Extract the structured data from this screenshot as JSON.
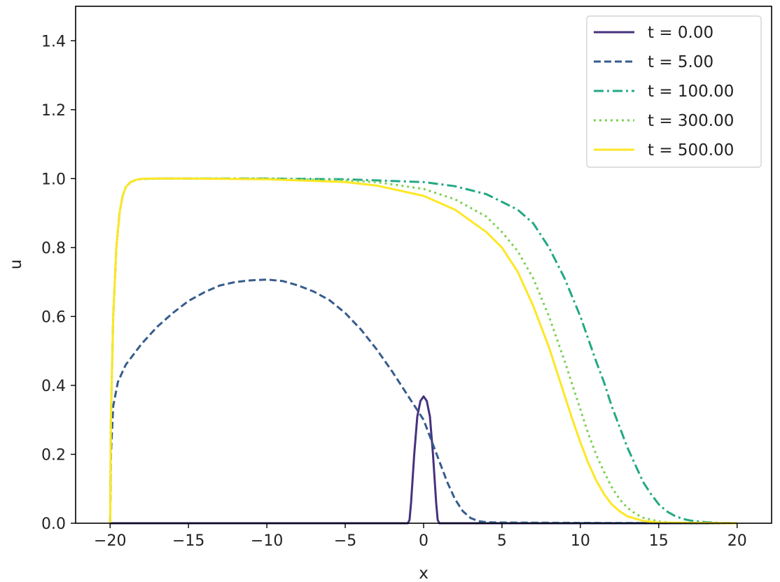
{
  "chart_data": {
    "type": "line",
    "title": "",
    "xlabel": "x",
    "ylabel": "u",
    "xlim": [
      -22.2,
      22.2
    ],
    "ylim": [
      0,
      1.5
    ],
    "xticks": [
      -20,
      -15,
      -10,
      -5,
      0,
      5,
      10,
      15,
      20
    ],
    "xtick_labels": [
      "−20",
      "−15",
      "−10",
      "−5",
      "0",
      "5",
      "10",
      "15",
      "20"
    ],
    "yticks": [
      0,
      0.2,
      0.4,
      0.6,
      0.8,
      1.0,
      1.2,
      1.4
    ],
    "ytick_labels": [
      "0.0",
      "0.2",
      "0.4",
      "0.6",
      "0.8",
      "1.0",
      "1.2",
      "1.4"
    ],
    "grid": false,
    "legend_position": "top-right",
    "series": [
      {
        "name": "t = 0.00",
        "color": "#46327e",
        "dash": "solid",
        "x": [
          -20,
          -1,
          -0.9,
          -0.8,
          -0.6,
          -0.4,
          -0.2,
          0,
          0.2,
          0.4,
          0.6,
          0.8,
          0.9,
          1,
          20
        ],
        "y": [
          0,
          0,
          0.01,
          0.06,
          0.2,
          0.31,
          0.355,
          0.368,
          0.355,
          0.31,
          0.2,
          0.06,
          0.01,
          0,
          0
        ]
      },
      {
        "name": "t = 5.00",
        "color": "#365c8d",
        "dash": "dashed",
        "x": [
          -20,
          -19.95,
          -19.8,
          -19.5,
          -19,
          -18,
          -17,
          -16,
          -15,
          -14,
          -13,
          -12,
          -11,
          -10,
          -9,
          -8,
          -7,
          -6,
          -5,
          -4,
          -3,
          -2,
          -1,
          0,
          0.5,
          1,
          1.5,
          2,
          2.5,
          3,
          3.5,
          4,
          5,
          10,
          20
        ],
        "y": [
          0,
          0.2,
          0.34,
          0.41,
          0.46,
          0.52,
          0.57,
          0.61,
          0.645,
          0.67,
          0.69,
          0.7,
          0.705,
          0.707,
          0.703,
          0.69,
          0.672,
          0.647,
          0.61,
          0.562,
          0.505,
          0.44,
          0.37,
          0.3,
          0.24,
          0.18,
          0.12,
          0.07,
          0.035,
          0.015,
          0.006,
          0.003,
          0.002,
          0.001,
          0
        ]
      },
      {
        "name": "t = 100.00",
        "color": "#22a884",
        "dash": "dashdot",
        "x": [
          -20,
          -19.95,
          -19.8,
          -19.6,
          -19.4,
          -19.2,
          -19,
          -18.7,
          -18.3,
          -18,
          -17,
          -15,
          -10,
          -5,
          0,
          2,
          4,
          6,
          7,
          8,
          9,
          10,
          11,
          11.5,
          12,
          12.5,
          13,
          13.5,
          14,
          14.5,
          15,
          15.5,
          16,
          16.5,
          17,
          18,
          19,
          20
        ],
        "y": [
          0,
          0.3,
          0.6,
          0.8,
          0.9,
          0.95,
          0.975,
          0.99,
          0.997,
          0.999,
          1,
          1,
          1,
          0.998,
          0.99,
          0.978,
          0.955,
          0.91,
          0.87,
          0.8,
          0.71,
          0.6,
          0.47,
          0.41,
          0.34,
          0.28,
          0.22,
          0.17,
          0.12,
          0.085,
          0.055,
          0.035,
          0.022,
          0.013,
          0.008,
          0.003,
          0.001,
          0
        ]
      },
      {
        "name": "t = 300.00",
        "color": "#7ad151",
        "dash": "dotted",
        "x": [
          -20,
          -19.95,
          -19.8,
          -19.6,
          -19.4,
          -19.2,
          -19,
          -18.7,
          -18.3,
          -18,
          -17,
          -15,
          -10,
          -5,
          -3,
          0,
          2,
          4,
          5,
          6,
          7,
          8,
          9,
          9.5,
          10,
          10.5,
          11,
          11.5,
          12,
          12.5,
          13,
          13.5,
          14,
          15,
          16,
          20
        ],
        "y": [
          0,
          0.3,
          0.6,
          0.8,
          0.9,
          0.95,
          0.975,
          0.99,
          0.997,
          0.999,
          1,
          1,
          1,
          0.995,
          0.99,
          0.97,
          0.94,
          0.89,
          0.845,
          0.79,
          0.71,
          0.6,
          0.47,
          0.4,
          0.33,
          0.26,
          0.2,
          0.15,
          0.105,
          0.07,
          0.045,
          0.028,
          0.016,
          0.005,
          0.001,
          0
        ]
      },
      {
        "name": "t = 500.00",
        "color": "#fde725",
        "dash": "solid",
        "x": [
          -20,
          -19.95,
          -19.8,
          -19.6,
          -19.4,
          -19.2,
          -19,
          -18.7,
          -18.3,
          -18,
          -17,
          -15,
          -10,
          -5,
          -3,
          0,
          2,
          4,
          5,
          6,
          7,
          8,
          8.5,
          9,
          9.5,
          10,
          10.5,
          11,
          11.5,
          12,
          12.5,
          13,
          14,
          15,
          20
        ],
        "y": [
          0,
          0.3,
          0.6,
          0.8,
          0.9,
          0.95,
          0.975,
          0.99,
          0.997,
          0.999,
          1,
          1,
          0.998,
          0.99,
          0.98,
          0.95,
          0.91,
          0.845,
          0.8,
          0.73,
          0.63,
          0.51,
          0.44,
          0.37,
          0.3,
          0.235,
          0.175,
          0.125,
          0.085,
          0.055,
          0.035,
          0.02,
          0.007,
          0.002,
          0
        ]
      }
    ]
  }
}
